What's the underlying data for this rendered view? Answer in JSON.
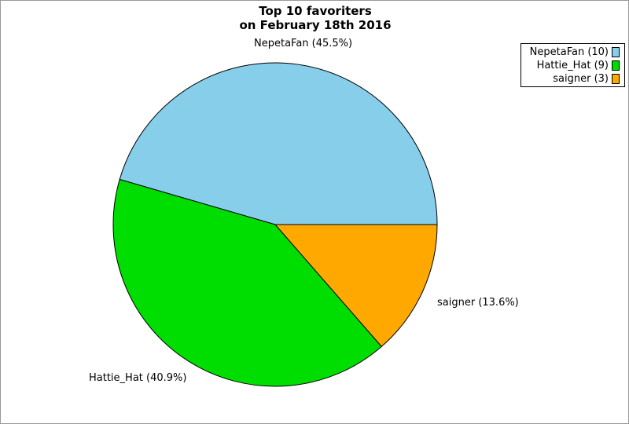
{
  "title": {
    "line1": "Top 10 favoriters",
    "line2": "on February 18th 2016"
  },
  "chart_data": {
    "type": "pie",
    "title": "Top 10 favoriters on February 18th 2016",
    "start_angle_deg": 0,
    "direction": "counterclockwise",
    "legend_position": "top-right",
    "slices": [
      {
        "name": "NepetaFan",
        "value": 10,
        "percent": 45.5,
        "color": "#87CEEB",
        "slice_label": "NepetaFan (45.5%)",
        "legend_label": "NepetaFan (10)"
      },
      {
        "name": "Hattie_Hat",
        "value": 9,
        "percent": 40.9,
        "color": "#00DD00",
        "slice_label": "Hattie_Hat (40.9%)",
        "legend_label": "Hattie_Hat (9)"
      },
      {
        "name": "saigner",
        "value": 3,
        "percent": 13.6,
        "color": "#FFA800",
        "slice_label": "saigner (13.6%)",
        "legend_label": "saigner (3)"
      }
    ]
  }
}
